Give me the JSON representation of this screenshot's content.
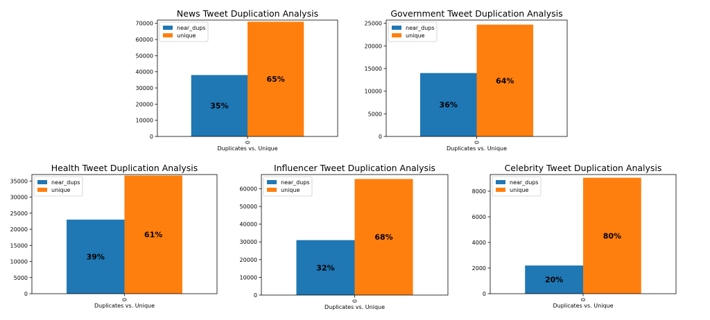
{
  "chart_data": [
    {
      "type": "bar",
      "title": "News Tweet Duplication Analysis",
      "xlabel": "Duplicates vs. Unique",
      "ylabel": "",
      "categories": [
        "0"
      ],
      "ylim": [
        0,
        72000
      ],
      "yticks": [
        0,
        10000,
        20000,
        30000,
        40000,
        50000,
        60000,
        70000
      ],
      "series": [
        {
          "name": "near_dups",
          "values": [
            38000
          ],
          "label": "35%",
          "color": "#1f77b4"
        },
        {
          "name": "unique",
          "values": [
            71000
          ],
          "label": "65%",
          "color": "#ff7f0e"
        }
      ],
      "legend": "top-left"
    },
    {
      "type": "bar",
      "title": "Government Tweet Duplication Analysis",
      "xlabel": "Duplicates vs. Unique",
      "ylabel": "",
      "categories": [
        "0"
      ],
      "ylim": [
        0,
        25700
      ],
      "yticks": [
        0,
        5000,
        10000,
        15000,
        20000,
        25000
      ],
      "series": [
        {
          "name": "near_dups",
          "values": [
            14000
          ],
          "label": "36%",
          "color": "#1f77b4"
        },
        {
          "name": "unique",
          "values": [
            24700
          ],
          "label": "64%",
          "color": "#ff7f0e"
        }
      ],
      "legend": "top-left"
    },
    {
      "type": "bar",
      "title": "Health Tweet Duplication Analysis",
      "xlabel": "Duplicates vs. Unique",
      "ylabel": "",
      "categories": [
        "0"
      ],
      "ylim": [
        0,
        37000
      ],
      "yticks": [
        0,
        5000,
        10000,
        15000,
        20000,
        25000,
        30000,
        35000
      ],
      "series": [
        {
          "name": "near_dups",
          "values": [
            23000
          ],
          "label": "39%",
          "color": "#1f77b4"
        },
        {
          "name": "unique",
          "values": [
            36700
          ],
          "label": "61%",
          "color": "#ff7f0e"
        }
      ],
      "legend": "top-left"
    },
    {
      "type": "bar",
      "title": "Influencer Tweet Duplication Analysis",
      "xlabel": "Duplicates vs. Unique",
      "ylabel": "",
      "categories": [
        "0"
      ],
      "ylim": [
        0,
        68000
      ],
      "yticks": [
        0,
        10000,
        20000,
        30000,
        40000,
        50000,
        60000
      ],
      "series": [
        {
          "name": "near_dups",
          "values": [
            31000
          ],
          "label": "32%",
          "color": "#1f77b4"
        },
        {
          "name": "unique",
          "values": [
            65500
          ],
          "label": "68%",
          "color": "#ff7f0e"
        }
      ],
      "legend": "top-left"
    },
    {
      "type": "bar",
      "title": "Celebrity Tweet Duplication Analysis",
      "xlabel": "Duplicates vs. Unique",
      "ylabel": "",
      "categories": [
        "0"
      ],
      "ylim": [
        0,
        9300
      ],
      "yticks": [
        0,
        2000,
        4000,
        6000,
        8000
      ],
      "series": [
        {
          "name": "near_dups",
          "values": [
            2200
          ],
          "label": "20%",
          "color": "#1f77b4"
        },
        {
          "name": "unique",
          "values": [
            9050
          ],
          "label": "80%",
          "color": "#ff7f0e"
        }
      ],
      "legend": "top-left"
    }
  ]
}
